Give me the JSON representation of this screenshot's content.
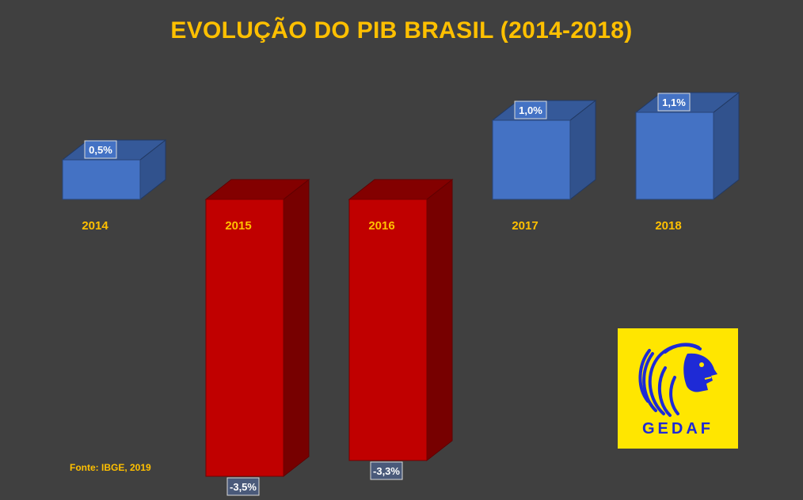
{
  "chart_data": {
    "type": "bar",
    "title": "EVOLUÇÃO DO PIB BRASIL (2014-2018)",
    "categories": [
      "2014",
      "2015",
      "2016",
      "2017",
      "2018"
    ],
    "values": [
      0.5,
      -3.5,
      -3.3,
      1.0,
      1.1
    ],
    "value_labels": [
      "0,5%",
      "-3,5%",
      "-3,3%",
      "1,0%",
      "1,1%"
    ],
    "xlabel": "",
    "ylabel": "",
    "grid": false,
    "colors": {
      "positive": "#4472C4",
      "negative": "#C00000",
      "category_labels": "#FFC000"
    }
  },
  "source_note": "Fonte: IBGE, 2019",
  "logo": {
    "text": "GEDAF",
    "icon": "lion-head-icon",
    "background": "#FFE600",
    "color": "#1E2AD6"
  }
}
